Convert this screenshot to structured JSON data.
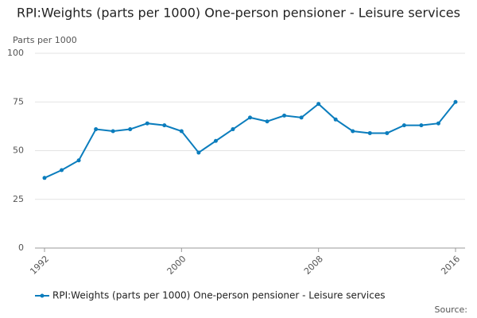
{
  "chart_data": {
    "type": "line",
    "title": "RPI:Weights (parts per 1000) One-person pensioner - Leisure services",
    "y_label": "Parts per 1000",
    "source": "Source:",
    "x": [
      1992,
      1993,
      1994,
      1995,
      1996,
      1997,
      1998,
      1999,
      2000,
      2001,
      2002,
      2003,
      2004,
      2005,
      2006,
      2007,
      2008,
      2009,
      2010,
      2011,
      2012,
      2013,
      2014,
      2015,
      2016
    ],
    "series": [
      {
        "name": "RPI:Weights (parts per 1000) One-person pensioner - Leisure services",
        "color": "#0b7dbd",
        "values": [
          36,
          40,
          45,
          61,
          60,
          61,
          64,
          63,
          60,
          49,
          55,
          61,
          67,
          65,
          68,
          67,
          74,
          66,
          60,
          59,
          59,
          63,
          63,
          64,
          75
        ]
      }
    ],
    "xlim": [
      1992,
      2016
    ],
    "xticks": [
      1992,
      2000,
      2008,
      2016
    ],
    "ylim": [
      0,
      100
    ],
    "yticks": [
      0,
      25,
      50,
      75,
      100
    ],
    "grid": true
  }
}
